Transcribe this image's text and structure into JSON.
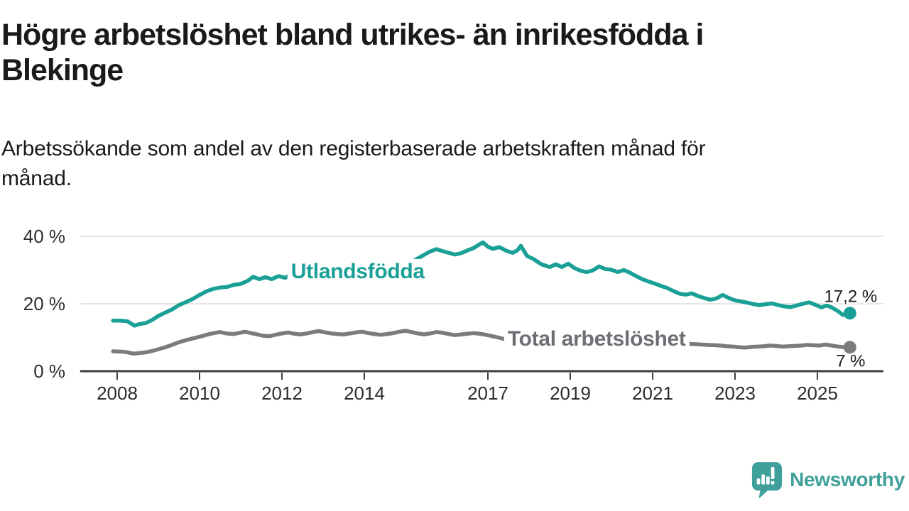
{
  "header": {
    "title_lines": [
      "Högre arbetslöshet bland utrikes- än inrikesfödda i",
      "Blekinge"
    ],
    "subtitle_lines": [
      "Arbetssökande som andel av den registerbaserade arbetskraften månad för",
      "månad."
    ]
  },
  "footer": {
    "brand_name": "Newsworthy",
    "brand_icon": "bar-chart-speech-bubble-icon"
  },
  "colors": {
    "background": "#ffffff",
    "title_text": "#1a1a1a",
    "axis_text": "#2e2e2e",
    "grid": "#dcdcdc",
    "axis_line": "#3d3d3d",
    "value_label_text": "#1a1a1a",
    "foreign_born_teal": "#1aa096",
    "total_gray": "#7b7b7b",
    "total_label_gray": "#6e6e75",
    "brand_teal": "#3f9f99"
  },
  "chart_data": {
    "type": "line",
    "unit": "%",
    "grid": true,
    "x_axis": {
      "range": [
        2007.1,
        2026.6
      ],
      "ticks": [
        {
          "year": 2008,
          "label": "2008"
        },
        {
          "year": 2010,
          "label": "2010"
        },
        {
          "year": 2012,
          "label": "2012"
        },
        {
          "year": 2014,
          "label": "2014"
        },
        {
          "year": 2017,
          "label": "2017"
        },
        {
          "year": 2019,
          "label": "2019"
        },
        {
          "year": 2021,
          "label": "2021"
        },
        {
          "year": 2023,
          "label": "2023"
        },
        {
          "year": 2025,
          "label": "2025"
        }
      ]
    },
    "y_axis": {
      "range": [
        0,
        44
      ],
      "ticks": [
        {
          "value": 0,
          "label": "0 %"
        },
        {
          "value": 20,
          "label": "20 %"
        },
        {
          "value": 40,
          "label": "40 %"
        }
      ]
    },
    "series": [
      {
        "id": "utlandsfodda",
        "name": "Utlandsfödda",
        "color": "#1aa096",
        "label_color": "#1aa096",
        "end_label": "17,2 %",
        "end_value": 17.2,
        "end_label_side": "above",
        "label_pos": {
          "year": 2012.22,
          "value": 27.6
        },
        "points": [
          [
            2007.9,
            15.0
          ],
          [
            2008.08,
            15.0
          ],
          [
            2008.25,
            14.8
          ],
          [
            2008.42,
            13.5
          ],
          [
            2008.55,
            14.0
          ],
          [
            2008.7,
            14.3
          ],
          [
            2008.85,
            15.2
          ],
          [
            2009.0,
            16.4
          ],
          [
            2009.17,
            17.4
          ],
          [
            2009.33,
            18.3
          ],
          [
            2009.5,
            19.6
          ],
          [
            2009.67,
            20.5
          ],
          [
            2009.83,
            21.4
          ],
          [
            2010.0,
            22.6
          ],
          [
            2010.17,
            23.7
          ],
          [
            2010.33,
            24.4
          ],
          [
            2010.5,
            24.8
          ],
          [
            2010.67,
            25.0
          ],
          [
            2010.83,
            25.6
          ],
          [
            2011.0,
            25.9
          ],
          [
            2011.17,
            26.8
          ],
          [
            2011.3,
            28.0
          ],
          [
            2011.45,
            27.3
          ],
          [
            2011.6,
            27.9
          ],
          [
            2011.75,
            27.3
          ],
          [
            2011.92,
            28.2
          ],
          [
            2012.08,
            27.7
          ],
          [
            2012.25,
            28.9
          ],
          [
            2012.42,
            28.1
          ],
          [
            2012.58,
            27.8
          ],
          [
            2012.75,
            28.4
          ],
          [
            2012.92,
            27.3
          ],
          [
            2013.08,
            27.7
          ],
          [
            2013.25,
            27.2
          ],
          [
            2013.42,
            27.6
          ],
          [
            2013.58,
            28.1
          ],
          [
            2013.75,
            27.9
          ],
          [
            2013.92,
            28.5
          ],
          [
            2014.08,
            28.2
          ],
          [
            2014.25,
            28.7
          ],
          [
            2014.42,
            29.1
          ],
          [
            2014.58,
            29.6
          ],
          [
            2014.75,
            30.2
          ],
          [
            2014.92,
            30.9
          ],
          [
            2015.08,
            31.9
          ],
          [
            2015.25,
            33.1
          ],
          [
            2015.42,
            34.3
          ],
          [
            2015.58,
            35.4
          ],
          [
            2015.75,
            36.2
          ],
          [
            2015.9,
            35.6
          ],
          [
            2016.05,
            35.1
          ],
          [
            2016.2,
            34.6
          ],
          [
            2016.35,
            35.0
          ],
          [
            2016.5,
            35.8
          ],
          [
            2016.65,
            36.5
          ],
          [
            2016.78,
            37.5
          ],
          [
            2016.88,
            38.2
          ],
          [
            2017.0,
            36.9
          ],
          [
            2017.12,
            36.3
          ],
          [
            2017.28,
            36.8
          ],
          [
            2017.45,
            35.7
          ],
          [
            2017.6,
            35.1
          ],
          [
            2017.72,
            35.9
          ],
          [
            2017.8,
            37.2
          ],
          [
            2017.95,
            34.2
          ],
          [
            2018.1,
            33.3
          ],
          [
            2018.3,
            31.7
          ],
          [
            2018.5,
            30.9
          ],
          [
            2018.65,
            31.7
          ],
          [
            2018.8,
            30.9
          ],
          [
            2018.95,
            31.9
          ],
          [
            2019.1,
            30.6
          ],
          [
            2019.25,
            29.8
          ],
          [
            2019.4,
            29.4
          ],
          [
            2019.55,
            29.9
          ],
          [
            2019.7,
            31.1
          ],
          [
            2019.85,
            30.3
          ],
          [
            2020.0,
            30.1
          ],
          [
            2020.15,
            29.4
          ],
          [
            2020.3,
            30.0
          ],
          [
            2020.45,
            29.2
          ],
          [
            2020.6,
            28.2
          ],
          [
            2020.75,
            27.3
          ],
          [
            2020.9,
            26.6
          ],
          [
            2021.05,
            26.0
          ],
          [
            2021.2,
            25.3
          ],
          [
            2021.35,
            24.7
          ],
          [
            2021.5,
            23.8
          ],
          [
            2021.65,
            23.0
          ],
          [
            2021.8,
            22.7
          ],
          [
            2021.95,
            23.1
          ],
          [
            2022.1,
            22.3
          ],
          [
            2022.25,
            21.7
          ],
          [
            2022.4,
            21.2
          ],
          [
            2022.55,
            21.6
          ],
          [
            2022.7,
            22.6
          ],
          [
            2022.85,
            21.7
          ],
          [
            2023.0,
            21.0
          ],
          [
            2023.15,
            20.7
          ],
          [
            2023.3,
            20.3
          ],
          [
            2023.45,
            19.9
          ],
          [
            2023.6,
            19.6
          ],
          [
            2023.75,
            19.9
          ],
          [
            2023.9,
            20.1
          ],
          [
            2024.05,
            19.6
          ],
          [
            2024.2,
            19.2
          ],
          [
            2024.35,
            19.0
          ],
          [
            2024.5,
            19.5
          ],
          [
            2024.65,
            20.0
          ],
          [
            2024.8,
            20.4
          ],
          [
            2024.95,
            19.7
          ],
          [
            2025.1,
            18.9
          ],
          [
            2025.22,
            19.5
          ],
          [
            2025.35,
            18.9
          ],
          [
            2025.5,
            17.8
          ],
          [
            2025.62,
            16.7
          ],
          [
            2025.79,
            17.2
          ]
        ]
      },
      {
        "id": "total-arbetsloshet",
        "name": "Total arbetslöshet",
        "color": "#7b7b7b",
        "label_color": "#6e6e75",
        "end_label": "7 %",
        "end_value": 7.1,
        "end_label_side": "below",
        "label_pos": {
          "year": 2017.48,
          "value": 7.58
        },
        "points": [
          [
            2007.9,
            5.9
          ],
          [
            2008.1,
            5.8
          ],
          [
            2008.25,
            5.6
          ],
          [
            2008.4,
            5.2
          ],
          [
            2008.55,
            5.4
          ],
          [
            2008.7,
            5.6
          ],
          [
            2008.85,
            6.0
          ],
          [
            2009.0,
            6.5
          ],
          [
            2009.17,
            7.1
          ],
          [
            2009.33,
            7.8
          ],
          [
            2009.5,
            8.6
          ],
          [
            2009.67,
            9.2
          ],
          [
            2009.83,
            9.7
          ],
          [
            2010.0,
            10.2
          ],
          [
            2010.17,
            10.8
          ],
          [
            2010.35,
            11.3
          ],
          [
            2010.5,
            11.6
          ],
          [
            2010.65,
            11.2
          ],
          [
            2010.8,
            11.0
          ],
          [
            2010.95,
            11.3
          ],
          [
            2011.1,
            11.7
          ],
          [
            2011.25,
            11.3
          ],
          [
            2011.4,
            10.9
          ],
          [
            2011.55,
            10.5
          ],
          [
            2011.7,
            10.4
          ],
          [
            2011.85,
            10.8
          ],
          [
            2012.0,
            11.2
          ],
          [
            2012.15,
            11.5
          ],
          [
            2012.3,
            11.1
          ],
          [
            2012.45,
            10.9
          ],
          [
            2012.6,
            11.2
          ],
          [
            2012.75,
            11.6
          ],
          [
            2012.9,
            11.9
          ],
          [
            2013.05,
            11.5
          ],
          [
            2013.2,
            11.2
          ],
          [
            2013.35,
            11.0
          ],
          [
            2013.5,
            10.9
          ],
          [
            2013.65,
            11.2
          ],
          [
            2013.8,
            11.5
          ],
          [
            2013.95,
            11.7
          ],
          [
            2014.1,
            11.3
          ],
          [
            2014.25,
            11.0
          ],
          [
            2014.4,
            10.8
          ],
          [
            2014.55,
            11.0
          ],
          [
            2014.7,
            11.3
          ],
          [
            2014.85,
            11.7
          ],
          [
            2015.0,
            12.0
          ],
          [
            2015.15,
            11.6
          ],
          [
            2015.3,
            11.2
          ],
          [
            2015.45,
            10.9
          ],
          [
            2015.6,
            11.2
          ],
          [
            2015.75,
            11.6
          ],
          [
            2015.9,
            11.4
          ],
          [
            2016.05,
            11.0
          ],
          [
            2016.2,
            10.7
          ],
          [
            2016.35,
            10.9
          ],
          [
            2016.5,
            11.1
          ],
          [
            2016.65,
            11.3
          ],
          [
            2016.8,
            11.1
          ],
          [
            2016.95,
            10.8
          ],
          [
            2017.1,
            10.4
          ],
          [
            2017.25,
            10.0
          ],
          [
            2017.4,
            9.5
          ],
          [
            2017.55,
            9.0
          ],
          [
            2017.7,
            8.7
          ],
          [
            2017.85,
            8.9
          ],
          [
            2018.0,
            9.2
          ],
          [
            2018.15,
            9.0
          ],
          [
            2018.3,
            8.8
          ],
          [
            2018.45,
            8.6
          ],
          [
            2018.6,
            8.7
          ],
          [
            2018.75,
            8.9
          ],
          [
            2018.9,
            9.0
          ],
          [
            2019.05,
            8.8
          ],
          [
            2019.2,
            8.6
          ],
          [
            2019.35,
            8.4
          ],
          [
            2019.5,
            8.5
          ],
          [
            2019.65,
            8.7
          ],
          [
            2019.8,
            8.9
          ],
          [
            2019.95,
            9.0
          ],
          [
            2020.1,
            9.4
          ],
          [
            2020.25,
            9.9
          ],
          [
            2020.4,
            10.2
          ],
          [
            2020.55,
            10.0
          ],
          [
            2020.7,
            9.8
          ],
          [
            2020.85,
            9.6
          ],
          [
            2021.0,
            9.3
          ],
          [
            2021.15,
            9.0
          ],
          [
            2021.3,
            8.8
          ],
          [
            2021.45,
            8.5
          ],
          [
            2021.6,
            8.3
          ],
          [
            2021.75,
            8.2
          ],
          [
            2021.9,
            8.1
          ],
          [
            2022.05,
            8.0
          ],
          [
            2022.2,
            7.9
          ],
          [
            2022.35,
            7.8
          ],
          [
            2022.5,
            7.7
          ],
          [
            2022.65,
            7.6
          ],
          [
            2022.8,
            7.4
          ],
          [
            2022.95,
            7.3
          ],
          [
            2023.1,
            7.1
          ],
          [
            2023.25,
            7.0
          ],
          [
            2023.4,
            7.2
          ],
          [
            2023.55,
            7.3
          ],
          [
            2023.7,
            7.4
          ],
          [
            2023.85,
            7.6
          ],
          [
            2024.0,
            7.5
          ],
          [
            2024.15,
            7.3
          ],
          [
            2024.3,
            7.4
          ],
          [
            2024.45,
            7.5
          ],
          [
            2024.6,
            7.6
          ],
          [
            2024.75,
            7.8
          ],
          [
            2024.9,
            7.7
          ],
          [
            2025.05,
            7.6
          ],
          [
            2025.2,
            7.9
          ],
          [
            2025.35,
            7.6
          ],
          [
            2025.5,
            7.3
          ],
          [
            2025.65,
            7.1
          ],
          [
            2025.79,
            7.1
          ]
        ]
      }
    ]
  }
}
